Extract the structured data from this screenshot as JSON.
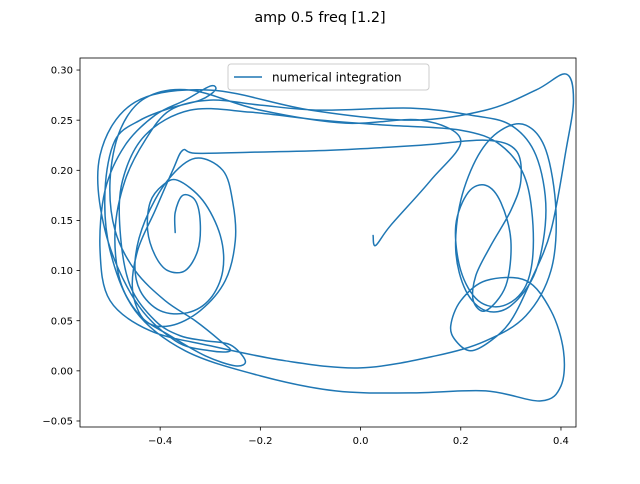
{
  "chart_data": {
    "type": "line",
    "title": "amp 0.5 freq [1.2]",
    "xlabel": "",
    "ylabel": "",
    "xlim": [
      -0.56,
      0.43
    ],
    "ylim": [
      -0.056,
      0.312
    ],
    "xticks": [
      -0.4,
      -0.2,
      0.0,
      0.2,
      0.4
    ],
    "xtick_labels": [
      "−0.4",
      "−0.2",
      "0.0",
      "0.2",
      "0.4"
    ],
    "yticks": [
      -0.05,
      0.0,
      0.05,
      0.1,
      0.15,
      0.2,
      0.25,
      0.3
    ],
    "ytick_labels": [
      "−0.05",
      "0.00",
      "0.05",
      "0.10",
      "0.15",
      "0.20",
      "0.25",
      "0.30"
    ],
    "grid": false,
    "legend": {
      "position": "upper center",
      "entries": [
        "numerical integration"
      ]
    },
    "series": [
      {
        "name": "numerical integration",
        "color": "#1f77b4",
        "x": [
          -0.37,
          -0.37,
          -0.355,
          -0.33,
          -0.32,
          -0.325,
          -0.35,
          -0.385,
          -0.41,
          -0.425,
          -0.42,
          -0.395,
          -0.365,
          -0.315,
          -0.28,
          -0.275,
          -0.3,
          -0.345,
          -0.4,
          -0.44,
          -0.45,
          -0.43,
          -0.385,
          -0.33,
          -0.275,
          -0.255,
          -0.25,
          -0.27,
          -0.32,
          -0.38,
          -0.43,
          -0.455,
          -0.445,
          -0.41,
          -0.375,
          -0.355,
          -0.33,
          -0.22,
          -0.06,
          0.12,
          0.25,
          0.31,
          0.32,
          0.3,
          0.26,
          0.23,
          0.225,
          0.25,
          0.29,
          0.3,
          0.28,
          0.25,
          0.215,
          0.19,
          0.2,
          0.235,
          0.285,
          0.33,
          0.345,
          0.33,
          0.28,
          0.2,
          0.05,
          -0.08,
          -0.22,
          -0.34,
          -0.43,
          -0.475,
          -0.48,
          -0.46,
          -0.41,
          -0.36,
          -0.31,
          -0.26,
          -0.23,
          -0.25,
          -0.31,
          -0.38,
          -0.44,
          -0.48,
          -0.49,
          -0.47,
          -0.43,
          -0.38,
          -0.3,
          -0.2,
          -0.08,
          0.1,
          0.22,
          0.3,
          0.35,
          0.37,
          0.35,
          0.3,
          0.25,
          0.21,
          0.19,
          0.2,
          0.235,
          0.28,
          0.33,
          0.37,
          0.39,
          0.38,
          0.33,
          0.25,
          0.15,
          0.0,
          -0.15,
          -0.3,
          -0.42,
          -0.5,
          -0.52,
          -0.51,
          -0.47,
          -0.41,
          -0.35,
          -0.3,
          -0.29,
          -0.32,
          -0.38,
          -0.44,
          -0.49,
          -0.51,
          -0.5,
          -0.45,
          -0.35,
          -0.2,
          -0.05,
          0.1,
          0.25,
          0.36,
          0.4,
          0.405,
          0.38,
          0.33,
          0.25,
          0.2,
          0.18,
          0.19,
          0.22,
          0.26,
          0.3,
          0.34,
          0.38,
          0.41,
          0.425,
          0.41,
          0.35,
          0.25,
          0.1,
          -0.1,
          -0.3,
          -0.45,
          -0.52,
          -0.51,
          -0.45,
          -0.37,
          -0.3,
          -0.26,
          -0.28,
          -0.33,
          -0.39,
          -0.45,
          -0.49,
          -0.5,
          -0.48,
          -0.43,
          -0.34,
          -0.2,
          -0.03,
          0.12,
          0.2,
          0.14,
          0.06,
          0.03,
          0.025
        ],
        "y": [
          0.138,
          0.158,
          0.175,
          0.17,
          0.148,
          0.12,
          0.1,
          0.1,
          0.115,
          0.14,
          0.168,
          0.185,
          0.19,
          0.17,
          0.135,
          0.1,
          0.072,
          0.058,
          0.06,
          0.08,
          0.11,
          0.15,
          0.19,
          0.212,
          0.2,
          0.168,
          0.13,
          0.09,
          0.06,
          0.045,
          0.05,
          0.08,
          0.12,
          0.16,
          0.2,
          0.22,
          0.217,
          0.218,
          0.22,
          0.225,
          0.23,
          0.22,
          0.19,
          0.16,
          0.125,
          0.095,
          0.07,
          0.06,
          0.085,
          0.13,
          0.168,
          0.185,
          0.178,
          0.145,
          0.1,
          0.07,
          0.065,
          0.085,
          0.13,
          0.19,
          0.225,
          0.24,
          0.245,
          0.25,
          0.258,
          0.26,
          0.235,
          0.19,
          0.14,
          0.085,
          0.05,
          0.035,
          0.03,
          0.026,
          0.01,
          0.005,
          0.015,
          0.035,
          0.055,
          0.09,
          0.14,
          0.19,
          0.23,
          0.26,
          0.27,
          0.265,
          0.26,
          0.262,
          0.255,
          0.245,
          0.215,
          0.16,
          0.1,
          0.065,
          0.06,
          0.08,
          0.12,
          0.17,
          0.215,
          0.24,
          0.245,
          0.22,
          0.16,
          0.1,
          0.055,
          0.03,
          0.015,
          0.003,
          0.01,
          0.025,
          0.04,
          0.07,
          0.12,
          0.18,
          0.225,
          0.255,
          0.27,
          0.284,
          0.28,
          0.27,
          0.262,
          0.25,
          0.23,
          0.18,
          0.12,
          0.06,
          0.02,
          -0.005,
          -0.02,
          -0.022,
          -0.02,
          -0.03,
          -0.015,
          0.02,
          0.06,
          0.09,
          0.09,
          0.07,
          0.045,
          0.03,
          0.02,
          0.03,
          0.05,
          0.09,
          0.14,
          0.22,
          0.27,
          0.296,
          0.28,
          0.26,
          0.25,
          0.26,
          0.28,
          0.268,
          0.215,
          0.14,
          0.07,
          0.03,
          0.02,
          0.02,
          0.03,
          0.05,
          0.07,
          0.1,
          0.14,
          0.19,
          0.24,
          0.272,
          0.28,
          0.26,
          0.247,
          0.25,
          0.23,
          0.19,
          0.145,
          0.125,
          0.135
        ]
      }
    ]
  }
}
